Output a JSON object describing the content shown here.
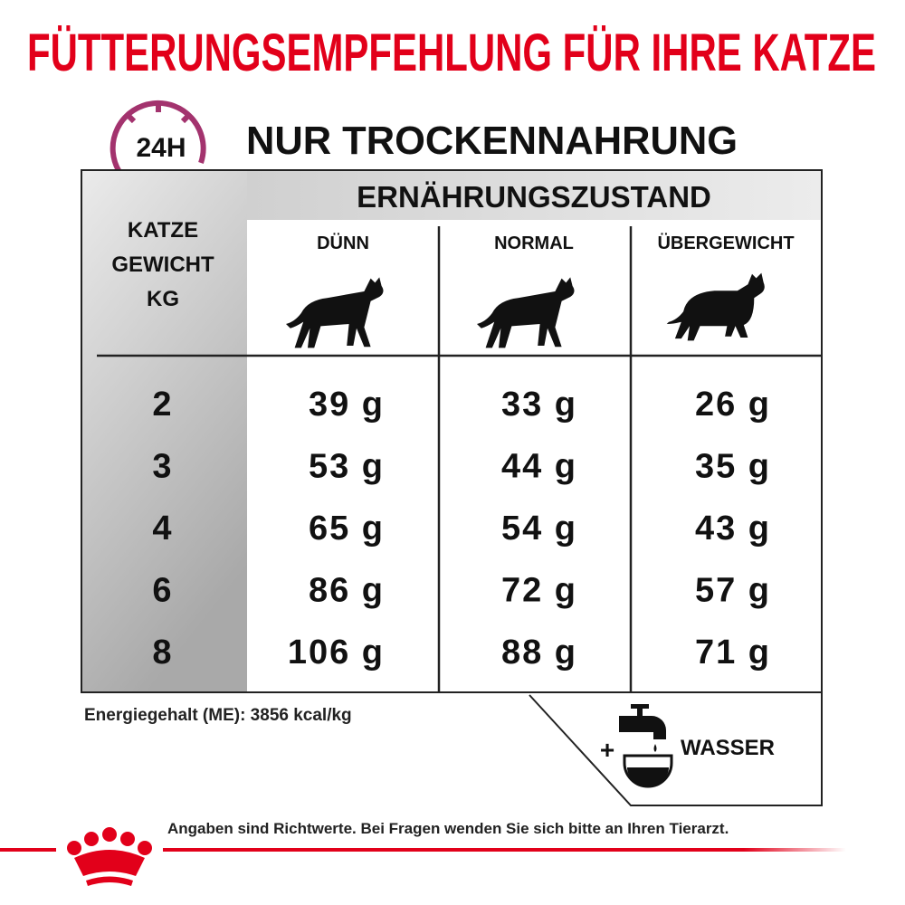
{
  "title": "FÜTTERUNGSEMPFEHLUNG FÜR IHRE KATZE",
  "section": {
    "badge": "24H",
    "title": "NUR TROCKENNAHRUNG"
  },
  "table": {
    "group_header": "ERNÄHRUNGSZUSTAND",
    "row_header": [
      "KATZE",
      "GEWICHT",
      "KG"
    ],
    "columns": [
      "DÜNN",
      "NORMAL",
      "ÜBERGEWICHT"
    ],
    "rows": [
      [
        "2",
        "39 g",
        "33 g",
        "26 g"
      ],
      [
        "3",
        "53 g",
        "44 g",
        "35 g"
      ],
      [
        "4",
        "65 g",
        "54 g",
        "43 g"
      ],
      [
        "6",
        "86 g",
        "72 g",
        "57 g"
      ],
      [
        "8",
        "106 g",
        "88 g",
        "71 g"
      ]
    ]
  },
  "energy": "Energiegehalt (ME): 3856 kcal/kg",
  "water": {
    "plus": "+",
    "label": "WASSER"
  },
  "footer": "Angaben sind Richtwerte. Bei Fragen wenden Sie sich bitte an Ihren Tierarzt."
}
